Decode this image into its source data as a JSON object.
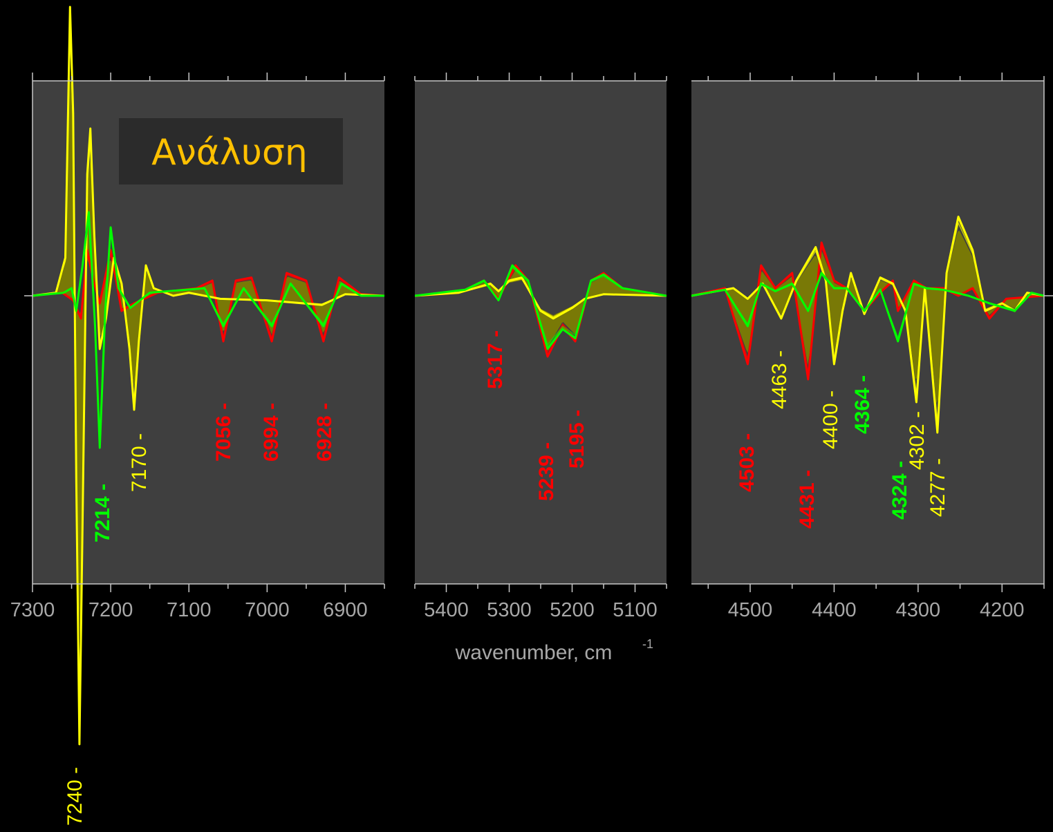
{
  "chart_data": {
    "type": "line",
    "title": "Ανάλυση",
    "xlabel": "wavenumber, cm",
    "xlabel_superscript": "-1",
    "colors": {
      "background": "#000000",
      "plot_area": "#3f3f3f",
      "title_box": "#2b2b2b",
      "title_text": "#ffc000",
      "fill": "#808000",
      "yellow": "#ffff00",
      "red": "#ff0000",
      "green": "#00ff00",
      "axis": "#c8c8c8",
      "tick_text": "#a8a8a8"
    },
    "panels": [
      {
        "xlim": [
          7300,
          6850
        ],
        "ylim": [
          -1.0,
          1.0
        ],
        "tick_labels": [
          "7300",
          "7200",
          "7100",
          "7000",
          "6900"
        ],
        "tick_values": [
          7300,
          7200,
          7100,
          7000,
          6900
        ],
        "minor_ticks": [
          7250,
          7150,
          7050,
          6950,
          6850
        ]
      },
      {
        "xlim": [
          5450,
          5050
        ],
        "ylim": [
          -1.0,
          1.0
        ],
        "tick_labels": [
          "5400",
          "5300",
          "5200",
          "5100"
        ],
        "tick_values": [
          5400,
          5300,
          5200,
          5100
        ],
        "minor_ticks": [
          5450,
          5350,
          5250,
          5150,
          5050
        ]
      },
      {
        "xlim": [
          4570,
          4150
        ],
        "ylim": [
          -1.0,
          1.0
        ],
        "tick_labels": [
          "4500",
          "4400",
          "4300",
          "4200"
        ],
        "tick_values": [
          4500,
          4400,
          4300,
          4200
        ],
        "minor_ticks": [
          4550,
          4450,
          4350,
          4250,
          4150
        ]
      }
    ],
    "series": [
      {
        "color": "yellow",
        "values": [
          [
            {
              "x": 7300,
              "y": 0
            },
            {
              "x": 7270,
              "y": 0.02
            },
            {
              "x": 7258,
              "y": 0.25
            },
            {
              "x": 7252,
              "y": 1.9
            },
            {
              "x": 7248,
              "y": 1.2
            },
            {
              "x": 7244,
              "y": -1.2
            },
            {
              "x": 7240,
              "y": -2.95
            },
            {
              "x": 7236,
              "y": -1.5
            },
            {
              "x": 7230,
              "y": 0.8
            },
            {
              "x": 7226,
              "y": 1.1
            },
            {
              "x": 7221,
              "y": 0.4
            },
            {
              "x": 7214,
              "y": -0.35
            },
            {
              "x": 7206,
              "y": -0.15
            },
            {
              "x": 7196,
              "y": 0.25
            },
            {
              "x": 7186,
              "y": 0.08
            },
            {
              "x": 7176,
              "y": -0.35
            },
            {
              "x": 7170,
              "y": -0.75
            },
            {
              "x": 7164,
              "y": -0.3
            },
            {
              "x": 7155,
              "y": 0.2
            },
            {
              "x": 7145,
              "y": 0.05
            },
            {
              "x": 7120,
              "y": 0
            },
            {
              "x": 7100,
              "y": 0.02
            },
            {
              "x": 7060,
              "y": -0.02
            },
            {
              "x": 7000,
              "y": -0.03
            },
            {
              "x": 6930,
              "y": -0.06
            },
            {
              "x": 6900,
              "y": 0.01
            },
            {
              "x": 6850,
              "y": 0
            }
          ],
          [
            {
              "x": 5450,
              "y": 0
            },
            {
              "x": 5380,
              "y": 0.02
            },
            {
              "x": 5330,
              "y": 0.08
            },
            {
              "x": 5317,
              "y": 0.03
            },
            {
              "x": 5300,
              "y": 0.1
            },
            {
              "x": 5280,
              "y": 0.12
            },
            {
              "x": 5250,
              "y": -0.1
            },
            {
              "x": 5230,
              "y": -0.15
            },
            {
              "x": 5200,
              "y": -0.08
            },
            {
              "x": 5180,
              "y": -0.02
            },
            {
              "x": 5150,
              "y": 0.01
            },
            {
              "x": 5050,
              "y": 0
            }
          ],
          [
            {
              "x": 4570,
              "y": 0
            },
            {
              "x": 4540,
              "y": 0.03
            },
            {
              "x": 4520,
              "y": 0.05
            },
            {
              "x": 4503,
              "y": -0.02
            },
            {
              "x": 4485,
              "y": 0.08
            },
            {
              "x": 4463,
              "y": -0.15
            },
            {
              "x": 4445,
              "y": 0.1
            },
            {
              "x": 4422,
              "y": 0.32
            },
            {
              "x": 4410,
              "y": 0.1
            },
            {
              "x": 4400,
              "y": -0.45
            },
            {
              "x": 4390,
              "y": -0.1
            },
            {
              "x": 4380,
              "y": 0.15
            },
            {
              "x": 4364,
              "y": -0.12
            },
            {
              "x": 4345,
              "y": 0.12
            },
            {
              "x": 4330,
              "y": 0.08
            },
            {
              "x": 4315,
              "y": -0.1
            },
            {
              "x": 4302,
              "y": -0.7
            },
            {
              "x": 4292,
              "y": 0.05
            },
            {
              "x": 4277,
              "y": -0.9
            },
            {
              "x": 4266,
              "y": 0.15
            },
            {
              "x": 4252,
              "y": 0.52
            },
            {
              "x": 4235,
              "y": 0.3
            },
            {
              "x": 4220,
              "y": -0.1
            },
            {
              "x": 4200,
              "y": -0.05
            },
            {
              "x": 4185,
              "y": -0.1
            },
            {
              "x": 4170,
              "y": 0.02
            },
            {
              "x": 4150,
              "y": 0
            }
          ]
        ]
      },
      {
        "color": "red",
        "values": [
          [
            {
              "x": 7300,
              "y": 0
            },
            {
              "x": 7262,
              "y": 0.02
            },
            {
              "x": 7248,
              "y": -0.03
            },
            {
              "x": 7238,
              "y": -0.15
            },
            {
              "x": 7230,
              "y": 0.3
            },
            {
              "x": 7222,
              "y": 0.1
            },
            {
              "x": 7214,
              "y": -0.05
            },
            {
              "x": 7200,
              "y": 0.3
            },
            {
              "x": 7186,
              "y": -0.1
            },
            {
              "x": 7170,
              "y": -0.05
            },
            {
              "x": 7140,
              "y": 0.02
            },
            {
              "x": 7090,
              "y": 0.05
            },
            {
              "x": 7070,
              "y": 0.1
            },
            {
              "x": 7056,
              "y": -0.3
            },
            {
              "x": 7040,
              "y": 0.1
            },
            {
              "x": 7020,
              "y": 0.12
            },
            {
              "x": 6994,
              "y": -0.3
            },
            {
              "x": 6975,
              "y": 0.15
            },
            {
              "x": 6950,
              "y": 0.1
            },
            {
              "x": 6928,
              "y": -0.3
            },
            {
              "x": 6908,
              "y": 0.12
            },
            {
              "x": 6880,
              "y": 0.01
            },
            {
              "x": 6850,
              "y": 0
            }
          ],
          [
            {
              "x": 5450,
              "y": 0
            },
            {
              "x": 5380,
              "y": 0.02
            },
            {
              "x": 5340,
              "y": 0.1
            },
            {
              "x": 5317,
              "y": -0.02
            },
            {
              "x": 5290,
              "y": 0.2
            },
            {
              "x": 5270,
              "y": 0.1
            },
            {
              "x": 5239,
              "y": -0.4
            },
            {
              "x": 5215,
              "y": -0.2
            },
            {
              "x": 5195,
              "y": -0.3
            },
            {
              "x": 5170,
              "y": 0.1
            },
            {
              "x": 5150,
              "y": 0.15
            },
            {
              "x": 5120,
              "y": 0.05
            },
            {
              "x": 5050,
              "y": 0
            }
          ],
          [
            {
              "x": 4570,
              "y": 0
            },
            {
              "x": 4530,
              "y": 0.05
            },
            {
              "x": 4503,
              "y": -0.45
            },
            {
              "x": 4487,
              "y": 0.2
            },
            {
              "x": 4470,
              "y": 0.05
            },
            {
              "x": 4450,
              "y": 0.15
            },
            {
              "x": 4431,
              "y": -0.55
            },
            {
              "x": 4415,
              "y": 0.35
            },
            {
              "x": 4400,
              "y": 0.1
            },
            {
              "x": 4385,
              "y": 0.05
            },
            {
              "x": 4364,
              "y": -0.1
            },
            {
              "x": 4345,
              "y": 0.02
            },
            {
              "x": 4330,
              "y": 0.1
            },
            {
              "x": 4324,
              "y": -0.1
            },
            {
              "x": 4305,
              "y": 0.1
            },
            {
              "x": 4290,
              "y": 0.05
            },
            {
              "x": 4270,
              "y": 0.05
            },
            {
              "x": 4252,
              "y": 0
            },
            {
              "x": 4235,
              "y": 0.05
            },
            {
              "x": 4215,
              "y": -0.15
            },
            {
              "x": 4195,
              "y": -0.02
            },
            {
              "x": 4150,
              "y": 0
            }
          ]
        ]
      },
      {
        "color": "green",
        "values": [
          [
            {
              "x": 7300,
              "y": 0
            },
            {
              "x": 7260,
              "y": 0.02
            },
            {
              "x": 7250,
              "y": 0.05
            },
            {
              "x": 7244,
              "y": -0.1
            },
            {
              "x": 7236,
              "y": 0.2
            },
            {
              "x": 7228,
              "y": 0.55
            },
            {
              "x": 7220,
              "y": -0.2
            },
            {
              "x": 7214,
              "y": -1.0
            },
            {
              "x": 7207,
              "y": -0.1
            },
            {
              "x": 7200,
              "y": 0.45
            },
            {
              "x": 7190,
              "y": 0.05
            },
            {
              "x": 7175,
              "y": -0.08
            },
            {
              "x": 7150,
              "y": 0.02
            },
            {
              "x": 7080,
              "y": 0.05
            },
            {
              "x": 7056,
              "y": -0.2
            },
            {
              "x": 7030,
              "y": 0.05
            },
            {
              "x": 6994,
              "y": -0.2
            },
            {
              "x": 6970,
              "y": 0.08
            },
            {
              "x": 6928,
              "y": -0.2
            },
            {
              "x": 6905,
              "y": 0.08
            },
            {
              "x": 6880,
              "y": 0
            },
            {
              "x": 6850,
              "y": 0
            }
          ],
          [
            {
              "x": 5450,
              "y": 0
            },
            {
              "x": 5370,
              "y": 0.04
            },
            {
              "x": 5340,
              "y": 0.1
            },
            {
              "x": 5317,
              "y": -0.03
            },
            {
              "x": 5295,
              "y": 0.2
            },
            {
              "x": 5270,
              "y": 0.1
            },
            {
              "x": 5239,
              "y": -0.35
            },
            {
              "x": 5215,
              "y": -0.22
            },
            {
              "x": 5195,
              "y": -0.28
            },
            {
              "x": 5170,
              "y": 0.1
            },
            {
              "x": 5150,
              "y": 0.14
            },
            {
              "x": 5120,
              "y": 0.05
            },
            {
              "x": 5050,
              "y": 0
            }
          ],
          [
            {
              "x": 4570,
              "y": 0
            },
            {
              "x": 4530,
              "y": 0.04
            },
            {
              "x": 4503,
              "y": -0.2
            },
            {
              "x": 4487,
              "y": 0.08
            },
            {
              "x": 4470,
              "y": 0.03
            },
            {
              "x": 4450,
              "y": 0.08
            },
            {
              "x": 4431,
              "y": -0.1
            },
            {
              "x": 4415,
              "y": 0.15
            },
            {
              "x": 4400,
              "y": 0.05
            },
            {
              "x": 4385,
              "y": 0.05
            },
            {
              "x": 4364,
              "y": -0.1
            },
            {
              "x": 4345,
              "y": 0.04
            },
            {
              "x": 4324,
              "y": -0.3
            },
            {
              "x": 4305,
              "y": 0.08
            },
            {
              "x": 4290,
              "y": 0.05
            },
            {
              "x": 4270,
              "y": 0.04
            },
            {
              "x": 4240,
              "y": 0
            },
            {
              "x": 4215,
              "y": -0.05
            },
            {
              "x": 4185,
              "y": -0.1
            },
            {
              "x": 4165,
              "y": 0.02
            },
            {
              "x": 4150,
              "y": 0
            }
          ]
        ]
      }
    ],
    "annotations": [
      {
        "panel": 0,
        "x": 7240,
        "text": "7240 -",
        "color": "yellow",
        "bold": false
      },
      {
        "panel": 0,
        "x": 7214,
        "text": "7214 -",
        "color": "green",
        "bold": true
      },
      {
        "panel": 0,
        "x": 7170,
        "text": "7170 -",
        "color": "yellow",
        "bold": false
      },
      {
        "panel": 0,
        "x": 7056,
        "text": "7056 -",
        "color": "red",
        "bold": true
      },
      {
        "panel": 0,
        "x": 6994,
        "text": "6994 -",
        "color": "red",
        "bold": true
      },
      {
        "panel": 0,
        "x": 6928,
        "text": "6928 -",
        "color": "red",
        "bold": true
      },
      {
        "panel": 1,
        "x": 5317,
        "text": "5317 -",
        "color": "red",
        "bold": true
      },
      {
        "panel": 1,
        "x": 5239,
        "text": "5239 -",
        "color": "red",
        "bold": true
      },
      {
        "panel": 1,
        "x": 5195,
        "text": "5195 -",
        "color": "red",
        "bold": true
      },
      {
        "panel": 2,
        "x": 4503,
        "text": "4503 -",
        "color": "red",
        "bold": true
      },
      {
        "panel": 2,
        "x": 4463,
        "text": "4463 -",
        "color": "yellow",
        "bold": false
      },
      {
        "panel": 2,
        "x": 4431,
        "text": "4431 -",
        "color": "red",
        "bold": true
      },
      {
        "panel": 2,
        "x": 4400,
        "text": "4400 -",
        "color": "yellow",
        "bold": false
      },
      {
        "panel": 2,
        "x": 4364,
        "text": "4364 -",
        "color": "green",
        "bold": true
      },
      {
        "panel": 2,
        "x": 4324,
        "text": "4324 -",
        "color": "green",
        "bold": true
      },
      {
        "panel": 2,
        "x": 4302,
        "text": "4302 -",
        "color": "yellow",
        "bold": false
      },
      {
        "panel": 2,
        "x": 4277,
        "text": "4277 -",
        "color": "yellow",
        "bold": false
      }
    ],
    "grid": false,
    "legend": "none"
  }
}
